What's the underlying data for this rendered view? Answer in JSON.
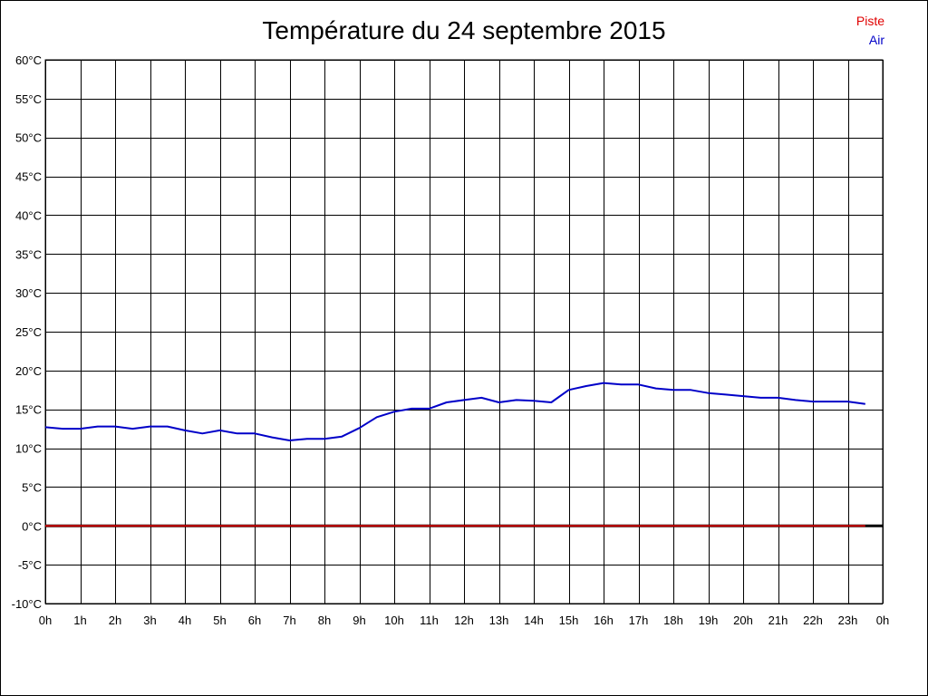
{
  "chart_data": {
    "type": "line",
    "title": "Température du 24 septembre 2015",
    "x_tick_labels": [
      "0h",
      "1h",
      "2h",
      "3h",
      "4h",
      "5h",
      "6h",
      "7h",
      "8h",
      "9h",
      "10h",
      "11h",
      "12h",
      "13h",
      "14h",
      "15h",
      "16h",
      "17h",
      "18h",
      "19h",
      "20h",
      "21h",
      "22h",
      "23h",
      "0h"
    ],
    "y_tick_labels": [
      "60°C",
      "55°C",
      "50°C",
      "45°C",
      "40°C",
      "35°C",
      "30°C",
      "25°C",
      "20°C",
      "15°C",
      "10°C",
      "5°C",
      "0°C",
      "-5°C",
      "-10°C"
    ],
    "xlim": [
      0,
      24
    ],
    "ylim": [
      -10,
      60
    ],
    "y_ticks": [
      60,
      55,
      50,
      45,
      40,
      35,
      30,
      25,
      20,
      15,
      10,
      5,
      0,
      -5,
      -10
    ],
    "grid": true,
    "legend": "top-right",
    "series": [
      {
        "name": "Piste",
        "color": "#ff0000",
        "x": [
          0,
          23.5
        ],
        "y": [
          0,
          0
        ]
      },
      {
        "name": "Air",
        "color": "#0000ff",
        "x": [
          0,
          0.5,
          1,
          1.5,
          2,
          2.5,
          3,
          3.5,
          4,
          4.5,
          5,
          5.5,
          6,
          6.5,
          7,
          7.5,
          8,
          8.5,
          9,
          9.5,
          10,
          10.5,
          11,
          11.5,
          12,
          12.5,
          13,
          13.5,
          14,
          14.5,
          15,
          15.5,
          16,
          16.5,
          17,
          17.5,
          18,
          18.5,
          19,
          19.5,
          20,
          20.5,
          21,
          21.5,
          22,
          22.5,
          23,
          23.5
        ],
        "y": [
          12.7,
          12.5,
          12.5,
          12.8,
          12.8,
          12.5,
          12.8,
          12.8,
          12.3,
          11.9,
          12.3,
          11.9,
          11.9,
          11.4,
          11.0,
          11.2,
          11.2,
          11.5,
          12.6,
          14.0,
          14.7,
          15.1,
          15.1,
          15.9,
          16.2,
          16.5,
          15.9,
          16.2,
          16.1,
          15.9,
          17.5,
          18.0,
          18.4,
          18.2,
          18.2,
          17.7,
          17.5,
          17.5,
          17.1,
          16.9,
          16.7,
          16.5,
          16.5,
          16.2,
          16.0,
          16.0,
          16.0,
          15.7
        ]
      }
    ]
  }
}
